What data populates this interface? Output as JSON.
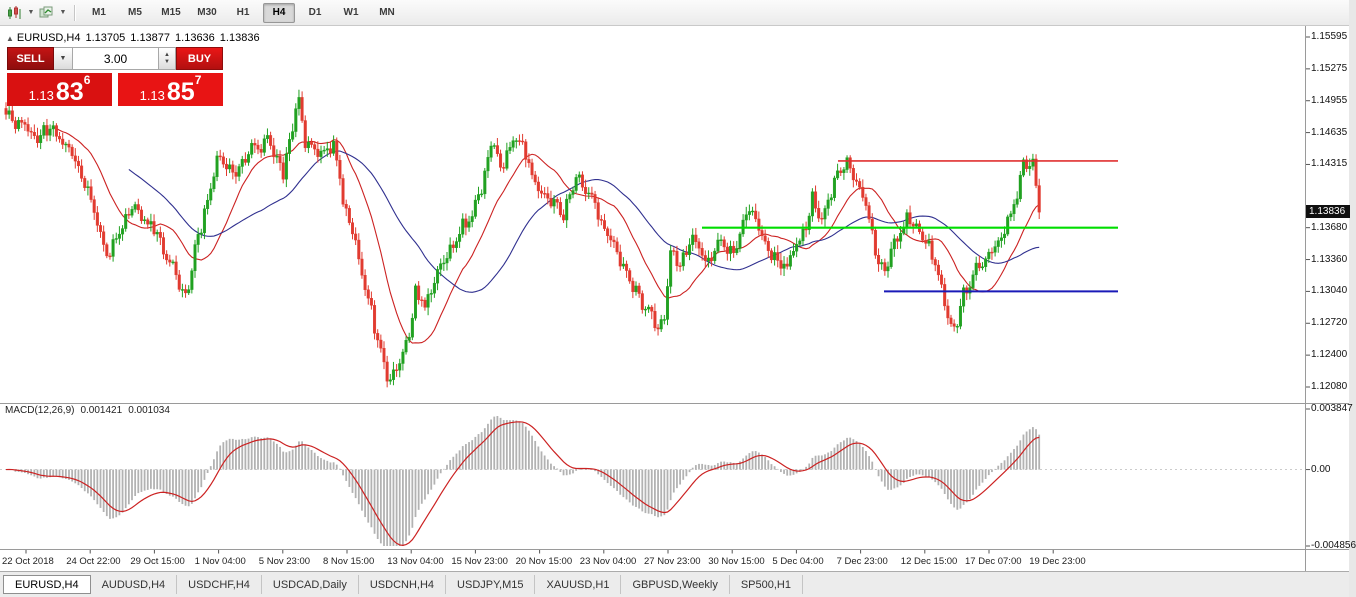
{
  "toolbar": {
    "timeframes": [
      "M1",
      "M5",
      "M15",
      "M30",
      "H1",
      "H4",
      "D1",
      "W1",
      "MN"
    ],
    "active_timeframe": "H4",
    "icons": {
      "chart_type_icon": "candlestick-chart",
      "indicators_icon": "indicators-layers",
      "dropdown_glyph": "▼",
      "up_glyph": "▲"
    }
  },
  "chart_header": {
    "marker": "▲",
    "symbol": "EURUSD,H4",
    "open": "1.13705",
    "high": "1.13877",
    "low": "1.13636",
    "close": "1.13836"
  },
  "trade_panel": {
    "sell_label": "SELL",
    "buy_label": "BUY",
    "volume": "3.00",
    "sell_price": {
      "prefix": "1.13",
      "big": "83",
      "sup": "6"
    },
    "buy_price": {
      "prefix": "1.13",
      "big": "85",
      "sup": "7"
    }
  },
  "macd_panel": {
    "name": "MACD(12,26,9)",
    "value_main": "0.001421",
    "value_signal": "0.001034",
    "axis_top": "0.003847",
    "axis_zero": "0.00",
    "axis_bottom": "-0.004856"
  },
  "tabs": {
    "items": [
      "EURUSD,H4",
      "AUDUSD,H4",
      "USDCHF,H4",
      "USDCAD,Daily",
      "USDCNH,H4",
      "USDJPY,M15",
      "XAUUSD,H1",
      "GBPUSD,Weekly",
      "SP500,H1"
    ],
    "active": "EURUSD,H4"
  },
  "chart_data": {
    "type": "candlestick",
    "title": "EURUSD,H4",
    "current_price": "1.13836",
    "last_close": 1.13836,
    "ylim": [
      1.1195,
      1.158
    ],
    "price_ticks": [
      "1.15595",
      "1.15275",
      "1.14955",
      "1.14635",
      "1.14315",
      "1.13680",
      "1.13360",
      "1.13040",
      "1.12720",
      "1.12400",
      "1.12080"
    ],
    "time_labels": [
      "22 Oct 2018",
      "24 Oct 22:00",
      "29 Oct 15:00",
      "1 Nov 04:00",
      "5 Nov 23:00",
      "8 Nov 15:00",
      "13 Nov 04:00",
      "15 Nov 23:00",
      "20 Nov 15:00",
      "23 Nov 04:00",
      "27 Nov 23:00",
      "30 Nov 15:00",
      "5 Dec 04:00",
      "7 Dec 23:00",
      "12 Dec 15:00",
      "17 Dec 07:00",
      "19 Dec 23:00"
    ],
    "candle_count": 329,
    "close_waypoints": [
      [
        0,
        1.1478
      ],
      [
        6,
        1.147
      ],
      [
        10,
        1.1455
      ],
      [
        14,
        1.1468
      ],
      [
        20,
        1.1445
      ],
      [
        26,
        1.1408
      ],
      [
        32,
        1.1338
      ],
      [
        40,
        1.1388
      ],
      [
        46,
        1.137
      ],
      [
        51,
        1.1342
      ],
      [
        57,
        1.13
      ],
      [
        62,
        1.137
      ],
      [
        67,
        1.1438
      ],
      [
        72,
        1.142
      ],
      [
        78,
        1.1445
      ],
      [
        83,
        1.1455
      ],
      [
        88,
        1.1425
      ],
      [
        92,
        1.1488
      ],
      [
        93,
        1.1498
      ],
      [
        95,
        1.1452
      ],
      [
        100,
        1.144
      ],
      [
        104,
        1.1452
      ],
      [
        107,
        1.1398
      ],
      [
        111,
        1.1352
      ],
      [
        114,
        1.131
      ],
      [
        117,
        1.1268
      ],
      [
        120,
        1.1228
      ],
      [
        122,
        1.1213
      ],
      [
        125,
        1.1238
      ],
      [
        128,
        1.1258
      ],
      [
        130,
        1.1305
      ],
      [
        133,
        1.1288
      ],
      [
        137,
        1.132
      ],
      [
        140,
        1.1335
      ],
      [
        144,
        1.1365
      ],
      [
        148,
        1.138
      ],
      [
        152,
        1.142
      ],
      [
        154,
        1.1458
      ],
      [
        157,
        1.1425
      ],
      [
        160,
        1.1448
      ],
      [
        162,
        1.146
      ],
      [
        165,
        1.144
      ],
      [
        168,
        1.1412
      ],
      [
        172,
        1.14
      ],
      [
        177,
        1.1378
      ],
      [
        181,
        1.1418
      ],
      [
        186,
        1.1398
      ],
      [
        191,
        1.1362
      ],
      [
        196,
        1.133
      ],
      [
        200,
        1.1302
      ],
      [
        204,
        1.1285
      ],
      [
        207,
        1.127
      ],
      [
        209,
        1.1272
      ],
      [
        211,
        1.1348
      ],
      [
        214,
        1.1328
      ],
      [
        218,
        1.136
      ],
      [
        222,
        1.1332
      ],
      [
        227,
        1.1352
      ],
      [
        231,
        1.1342
      ],
      [
        236,
        1.1388
      ],
      [
        240,
        1.136
      ],
      [
        244,
        1.1338
      ],
      [
        248,
        1.133
      ],
      [
        252,
        1.1355
      ],
      [
        256,
        1.1395
      ],
      [
        259,
        1.137
      ],
      [
        263,
        1.1418
      ],
      [
        267,
        1.1437
      ],
      [
        270,
        1.141
      ],
      [
        273,
        1.1388
      ],
      [
        276,
        1.1345
      ],
      [
        279,
        1.1322
      ],
      [
        283,
        1.136
      ],
      [
        287,
        1.138
      ],
      [
        291,
        1.1355
      ],
      [
        294,
        1.1342
      ],
      [
        297,
        1.1308
      ],
      [
        300,
        1.127
      ],
      [
        301,
        1.1262
      ],
      [
        304,
        1.13
      ],
      [
        308,
        1.133
      ],
      [
        312,
        1.134
      ],
      [
        316,
        1.1356
      ],
      [
        320,
        1.1392
      ],
      [
        323,
        1.143
      ],
      [
        326,
        1.1437
      ],
      [
        328,
        1.13836
      ]
    ],
    "candle_up_color": "#21a121",
    "candle_down_color": "#e13b30",
    "moving_averages": [
      {
        "name": "fast-ma",
        "period": 16,
        "color": "#cc2222"
      },
      {
        "name": "slow-ma",
        "period": 40,
        "color": "#30308f"
      }
    ],
    "hlines": [
      {
        "name": "resistance-line",
        "price": 1.1435,
        "x1": 838,
        "x2": 1118,
        "color": "#e03030",
        "width": 1.6
      },
      {
        "name": "pivot-line",
        "price": 1.1368,
        "x1": 702,
        "x2": 1118,
        "color": "#00dd00",
        "width": 2.2
      },
      {
        "name": "support-line",
        "price": 1.1304,
        "x1": 884,
        "x2": 1118,
        "color": "#1a1ab8",
        "width": 2
      }
    ],
    "macd": {
      "fast": 12,
      "slow": 26,
      "signal": 9,
      "histogram_color": "#b2b2b2",
      "signal_color": "#cc2222",
      "scale_top": 0.003847,
      "scale_bottom": -0.004856
    }
  }
}
